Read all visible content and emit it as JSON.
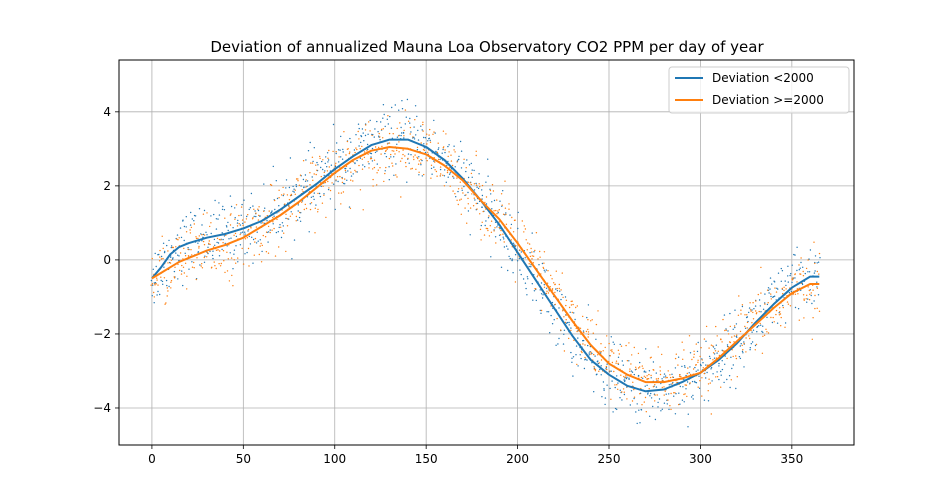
{
  "chart_data": {
    "type": "scatter",
    "title": "Deviation of annualized Mauna Loa Observatory CO2 PPM per day of year",
    "xlabel": "",
    "ylabel": "",
    "xlim": [
      -18,
      384
    ],
    "ylim": [
      -5,
      5.4
    ],
    "x_ticks": [
      0,
      50,
      100,
      150,
      200,
      250,
      300,
      350
    ],
    "y_ticks": [
      -4,
      -2,
      0,
      2,
      4
    ],
    "grid": true,
    "legend_position": "top-right",
    "series": [
      {
        "name": "Deviation <2000",
        "color": "#1f77b4",
        "smoothed_curve": {
          "x": [
            0,
            5,
            10,
            15,
            20,
            30,
            40,
            50,
            60,
            70,
            80,
            90,
            100,
            110,
            120,
            130,
            140,
            150,
            160,
            170,
            180,
            190,
            200,
            210,
            220,
            230,
            240,
            250,
            260,
            270,
            280,
            290,
            300,
            310,
            320,
            330,
            340,
            350,
            360,
            365
          ],
          "y": [
            -0.5,
            -0.2,
            0.15,
            0.35,
            0.45,
            0.6,
            0.7,
            0.85,
            1.05,
            1.35,
            1.7,
            2.05,
            2.45,
            2.8,
            3.1,
            3.25,
            3.25,
            3.05,
            2.7,
            2.2,
            1.6,
            0.95,
            0.2,
            -0.55,
            -1.3,
            -2.05,
            -2.7,
            -3.1,
            -3.4,
            -3.55,
            -3.5,
            -3.3,
            -3.05,
            -2.7,
            -2.25,
            -1.7,
            -1.2,
            -0.75,
            -0.45,
            -0.45
          ]
        },
        "noise": 0.45
      },
      {
        "name": "Deviation >=2000",
        "color": "#ff7f0e",
        "smoothed_curve": {
          "x": [
            0,
            5,
            10,
            15,
            20,
            30,
            40,
            50,
            60,
            70,
            80,
            90,
            100,
            110,
            120,
            130,
            140,
            150,
            160,
            170,
            180,
            190,
            200,
            210,
            220,
            230,
            240,
            250,
            260,
            270,
            280,
            290,
            300,
            310,
            320,
            330,
            340,
            350,
            360,
            365
          ],
          "y": [
            -0.5,
            -0.35,
            -0.2,
            -0.05,
            0.05,
            0.25,
            0.4,
            0.6,
            0.9,
            1.2,
            1.55,
            1.95,
            2.35,
            2.7,
            2.95,
            3.05,
            3.0,
            2.85,
            2.55,
            2.15,
            1.6,
            1.1,
            0.45,
            -0.25,
            -0.95,
            -1.65,
            -2.3,
            -2.8,
            -3.1,
            -3.3,
            -3.3,
            -3.2,
            -3.05,
            -2.65,
            -2.2,
            -1.75,
            -1.3,
            -0.9,
            -0.65,
            -0.65
          ]
        },
        "noise": 0.45
      }
    ]
  }
}
